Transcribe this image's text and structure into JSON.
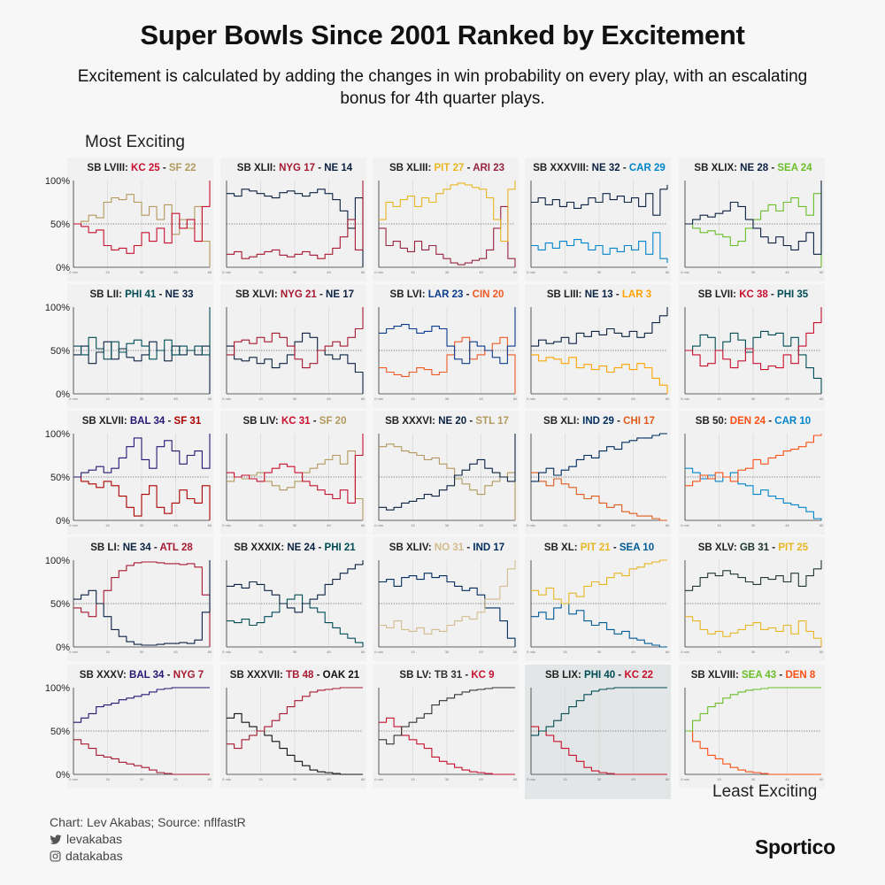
{
  "title": "Super Bowls Since 2001 Ranked by Excitement",
  "subtitle": "Excitement is calculated by adding the changes in win probability on every play, with an escalating bonus for 4th quarter plays.",
  "labels": {
    "most": "Most Exciting",
    "least": "Least Exciting"
  },
  "footer": {
    "credit": "Chart: Lev Akabas; Source: nflfastR",
    "twitter": "levakabas",
    "instagram": "datakabas",
    "brand": "Sportico"
  },
  "chart_data": {
    "type": "line",
    "x_axis": {
      "ticks": [
        "0 min",
        "15",
        "30",
        "45",
        "60"
      ],
      "range": [
        0,
        60
      ],
      "unit": "minutes"
    },
    "y_axis": {
      "ticks": [
        "100%",
        "50%",
        "0%"
      ],
      "range": [
        0,
        100
      ],
      "unit": "win probability %",
      "reference_line": 50
    },
    "order": "most to least exciting, left-to-right then top-to-bottom",
    "highlighted_game": "SB LIX",
    "games": [
      {
        "sb": "SB LVIII",
        "t1": "KC",
        "s1": "25",
        "c1": "#c8102e",
        "t2": "SF",
        "s2": "22",
        "c2": "#b3995d",
        "wp": [
          50,
          47,
          40,
          43,
          25,
          20,
          22,
          16,
          25,
          40,
          30,
          45,
          28,
          62,
          45,
          55,
          30,
          70,
          100
        ]
      },
      {
        "sb": "SB XLII",
        "t1": "NYG",
        "s1": "17",
        "c1": "#a71930",
        "t2": "NE",
        "s2": "14",
        "c2": "#0b2242",
        "wp": [
          15,
          18,
          10,
          12,
          15,
          18,
          20,
          14,
          12,
          15,
          18,
          14,
          10,
          15,
          22,
          35,
          55,
          20,
          100
        ]
      },
      {
        "sb": "SB XLIII",
        "t1": "PIT",
        "s1": "27",
        "c1": "#e8b622",
        "t2": "ARI",
        "s2": "23",
        "c2": "#97233f",
        "wp": [
          55,
          75,
          70,
          78,
          82,
          70,
          80,
          75,
          85,
          90,
          95,
          97,
          95,
          92,
          90,
          80,
          55,
          30,
          90,
          100
        ]
      },
      {
        "sb": "SB XXXVIII",
        "t1": "NE",
        "s1": "32",
        "c1": "#0b2242",
        "t2": "CAR",
        "s2": "29",
        "c2": "#0085ca",
        "wp": [
          75,
          80,
          72,
          78,
          70,
          75,
          68,
          72,
          80,
          75,
          85,
          78,
          82,
          75,
          80,
          70,
          85,
          60,
          90,
          95
        ]
      },
      {
        "sb": "SB XLIX",
        "t1": "NE",
        "s1": "28",
        "c1": "#0b2242",
        "t2": "SEA",
        "s2": "24",
        "c2": "#69be28",
        "wp": [
          50,
          55,
          60,
          58,
          62,
          65,
          75,
          70,
          55,
          45,
          35,
          28,
          35,
          25,
          20,
          30,
          40,
          15,
          100
        ]
      },
      {
        "sb": "SB LII",
        "t1": "PHI",
        "s1": "41",
        "c1": "#004c54",
        "t2": "NE",
        "s2": "33",
        "c2": "#0b2242",
        "wp": [
          55,
          45,
          65,
          52,
          40,
          60,
          48,
          58,
          62,
          55,
          40,
          50,
          62,
          45,
          55,
          50,
          55,
          45,
          100
        ]
      },
      {
        "sb": "SB XLVI",
        "t1": "NYG",
        "s1": "21",
        "c1": "#a71930",
        "t2": "NE",
        "s2": "17",
        "c2": "#0b2242",
        "wp": [
          45,
          60,
          62,
          58,
          65,
          60,
          70,
          65,
          55,
          40,
          30,
          35,
          50,
          55,
          60,
          55,
          65,
          75,
          100
        ]
      },
      {
        "sb": "SB LVI",
        "t1": "LAR",
        "s1": "23",
        "c1": "#0b3b8c",
        "t2": "CIN",
        "s2": "20",
        "c2": "#ef5a24",
        "wp": [
          70,
          75,
          78,
          80,
          75,
          70,
          72,
          78,
          75,
          55,
          40,
          35,
          60,
          55,
          50,
          42,
          35,
          55,
          100
        ]
      },
      {
        "sb": "SB LIII",
        "t1": "NE",
        "s1": "13",
        "c1": "#0b2242",
        "t2": "LAR",
        "s2": "3",
        "c2": "#ffa300",
        "wp": [
          55,
          62,
          58,
          60,
          65,
          58,
          70,
          66,
          72,
          68,
          75,
          70,
          66,
          72,
          65,
          70,
          82,
          90,
          100
        ]
      },
      {
        "sb": "SB LVII",
        "t1": "KC",
        "s1": "38",
        "c1": "#c8102e",
        "t2": "PHI",
        "s2": "35",
        "c2": "#004c54",
        "wp": [
          50,
          45,
          32,
          35,
          50,
          40,
          30,
          38,
          52,
          35,
          28,
          32,
          30,
          45,
          35,
          55,
          70,
          82,
          100
        ]
      },
      {
        "sb": "SB XLVII",
        "t1": "BAL",
        "s1": "34",
        "c1": "#241773",
        "t2": "SF",
        "s2": "31",
        "c2": "#aa0000",
        "wp": [
          50,
          55,
          58,
          62,
          55,
          60,
          72,
          85,
          95,
          70,
          60,
          85,
          92,
          80,
          65,
          75,
          80,
          60,
          100
        ]
      },
      {
        "sb": "SB LIV",
        "t1": "KC",
        "s1": "31",
        "c1": "#c8102e",
        "t2": "SF",
        "s2": "20",
        "c2": "#b3995d",
        "wp": [
          55,
          50,
          52,
          48,
          45,
          55,
          60,
          65,
          62,
          55,
          45,
          40,
          35,
          30,
          25,
          35,
          20,
          75,
          100
        ]
      },
      {
        "sb": "SB XXXVI",
        "t1": "NE",
        "s1": "20",
        "c1": "#0b2242",
        "t2": "STL",
        "s2": "17",
        "c2": "#b3995d",
        "wp": [
          15,
          12,
          15,
          20,
          22,
          25,
          30,
          28,
          35,
          40,
          52,
          58,
          65,
          70,
          60,
          55,
          50,
          45,
          100
        ]
      },
      {
        "sb": "SB XLI",
        "t1": "IND",
        "s1": "29",
        "c1": "#002c5f",
        "t2": "CHI",
        "s2": "17",
        "c2": "#e05a1a",
        "wp": [
          45,
          55,
          60,
          52,
          58,
          62,
          70,
          75,
          72,
          80,
          85,
          82,
          90,
          92,
          95,
          95,
          98,
          100,
          100
        ]
      },
      {
        "sb": "SB 50",
        "t1": "DEN",
        "s1": "24",
        "c1": "#fb4f14",
        "t2": "CAR",
        "s2": "10",
        "c2": "#0085ca",
        "wp": [
          40,
          45,
          52,
          48,
          55,
          50,
          45,
          58,
          60,
          70,
          65,
          72,
          75,
          80,
          82,
          85,
          90,
          98,
          100
        ]
      },
      {
        "sb": "SB LI",
        "t1": "NE",
        "s1": "34",
        "c1": "#0b2242",
        "t2": "ATL",
        "s2": "28",
        "c2": "#a71930",
        "wp": [
          55,
          60,
          65,
          50,
          35,
          20,
          12,
          6,
          3,
          2,
          2,
          3,
          4,
          4,
          5,
          4,
          8,
          40,
          100
        ]
      },
      {
        "sb": "SB XXXIX",
        "t1": "NE",
        "s1": "24",
        "c1": "#0b2242",
        "t2": "PHI",
        "s2": "21",
        "c2": "#004c54",
        "wp": [
          70,
          72,
          68,
          75,
          72,
          65,
          60,
          50,
          45,
          40,
          50,
          55,
          60,
          72,
          78,
          85,
          90,
          95,
          100
        ]
      },
      {
        "sb": "SB XLIV",
        "t1": "NO",
        "s1": "31",
        "c1": "#d3bc8d",
        "t2": "IND",
        "s2": "17",
        "c2": "#002c5f",
        "wp": [
          25,
          22,
          30,
          20,
          18,
          22,
          15,
          20,
          18,
          25,
          30,
          35,
          32,
          40,
          55,
          55,
          70,
          90,
          100
        ]
      },
      {
        "sb": "SB XL",
        "t1": "PIT",
        "s1": "21",
        "c1": "#e8b622",
        "t2": "SEA",
        "s2": "10",
        "c2": "#005b96",
        "wp": [
          65,
          60,
          68,
          55,
          50,
          62,
          58,
          70,
          75,
          72,
          80,
          85,
          82,
          90,
          92,
          96,
          98,
          100,
          100
        ]
      },
      {
        "sb": "SB XLV",
        "t1": "GB",
        "s1": "31",
        "c1": "#203731",
        "t2": "PIT",
        "s2": "25",
        "c2": "#e8b622",
        "wp": [
          65,
          70,
          80,
          85,
          82,
          88,
          84,
          80,
          75,
          72,
          80,
          78,
          82,
          75,
          85,
          70,
          82,
          90,
          100
        ]
      },
      {
        "sb": "SB XXXV",
        "t1": "BAL",
        "s1": "34",
        "c1": "#241773",
        "t2": "NYG",
        "s2": "7",
        "c2": "#a71930",
        "wp": [
          60,
          65,
          70,
          78,
          80,
          82,
          86,
          88,
          90,
          92,
          95,
          98,
          99,
          100,
          100,
          100,
          100,
          100,
          100
        ]
      },
      {
        "sb": "SB XXXVII",
        "t1": "TB",
        "s1": "48",
        "c1": "#a71930",
        "t2": "OAK",
        "s2": "21",
        "c2": "#111111",
        "wp": [
          35,
          30,
          40,
          45,
          50,
          55,
          62,
          70,
          78,
          85,
          90,
          95,
          97,
          98,
          99,
          100,
          100,
          100,
          100
        ]
      },
      {
        "sb": "SB LV",
        "t1": "TB",
        "s1": "31",
        "c1": "#333333",
        "t2": "KC",
        "s2": "9",
        "c2": "#c8102e",
        "wp": [
          40,
          35,
          45,
          55,
          60,
          65,
          70,
          80,
          85,
          88,
          92,
          95,
          97,
          98,
          99,
          100,
          100,
          100,
          100
        ]
      },
      {
        "sb": "SB LIX",
        "t1": "PHI",
        "s1": "40",
        "c1": "#004c54",
        "t2": "KC",
        "s2": "22",
        "c2": "#c8102e",
        "wp": [
          45,
          50,
          55,
          62,
          70,
          78,
          85,
          92,
          96,
          98,
          99,
          100,
          100,
          100,
          100,
          100,
          100,
          100,
          100
        ]
      },
      {
        "sb": "SB XLVIII",
        "t1": "SEA",
        "s1": "43",
        "c1": "#69be28",
        "t2": "DEN",
        "s2": "8",
        "c2": "#fb4f14",
        "wp": [
          50,
          62,
          70,
          78,
          82,
          88,
          92,
          95,
          97,
          98,
          99,
          100,
          100,
          100,
          100,
          100,
          100,
          100,
          100
        ]
      }
    ]
  }
}
